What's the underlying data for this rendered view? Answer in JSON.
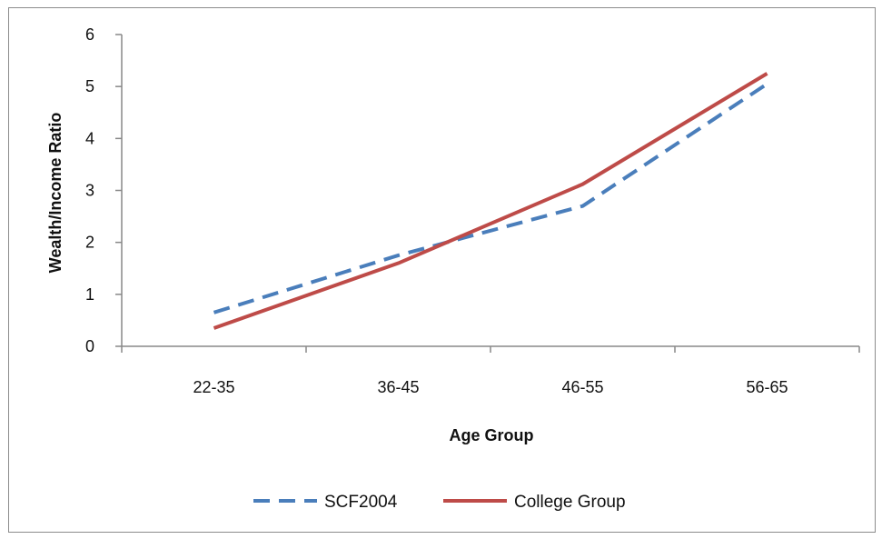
{
  "chart_data": {
    "type": "line",
    "title": "",
    "xlabel": "Age Group",
    "ylabel": "Wealth/Income Ratio",
    "categories": [
      "22-35",
      "36-45",
      "46-55",
      "56-65"
    ],
    "ylim": [
      0,
      6
    ],
    "yticks": [
      "0",
      "1",
      "2",
      "3",
      "4",
      "5",
      "6"
    ],
    "grid": false,
    "legend_position": "bottom",
    "series": [
      {
        "name": "SCF2004",
        "values": [
          0.65,
          1.75,
          2.7,
          5.05
        ],
        "color": "#4a7ebb",
        "style": "dashed"
      },
      {
        "name": "College Group",
        "values": [
          0.35,
          1.6,
          3.12,
          5.25
        ],
        "color": "#be4b48",
        "style": "solid"
      }
    ]
  }
}
